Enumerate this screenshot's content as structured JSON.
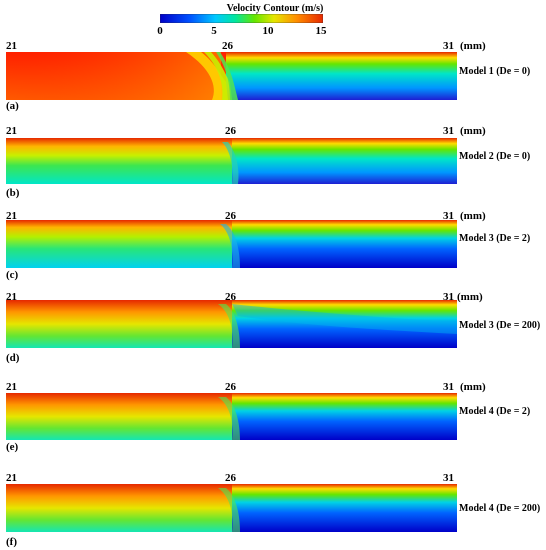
{
  "colorbar": {
    "title": "Velocity Contour (m/s)",
    "ticks": [
      "0",
      "5",
      "10",
      "15"
    ]
  },
  "axis_labels": {
    "left": "21",
    "mid": "26",
    "right": "31",
    "unit": "(mm)"
  },
  "panels": [
    {
      "letter": "(a)",
      "model": "Model 1 (De = 0)"
    },
    {
      "letter": "(b)",
      "model": "Model 2 (De = 0)"
    },
    {
      "letter": "(c)",
      "model": "Model 3 (De = 2)"
    },
    {
      "letter": "(d)",
      "model": "Model 3 (De = 200)"
    },
    {
      "letter": "(e)",
      "model": "Model 4 (De = 2)"
    },
    {
      "letter": "(f)",
      "model": "Model 4 (De = 200)"
    }
  ],
  "colors": {
    "jet": [
      "#0000c8",
      "#0050ff",
      "#00c8ff",
      "#00e6a0",
      "#64e600",
      "#e6e600",
      "#ff8c00",
      "#e62800"
    ]
  }
}
